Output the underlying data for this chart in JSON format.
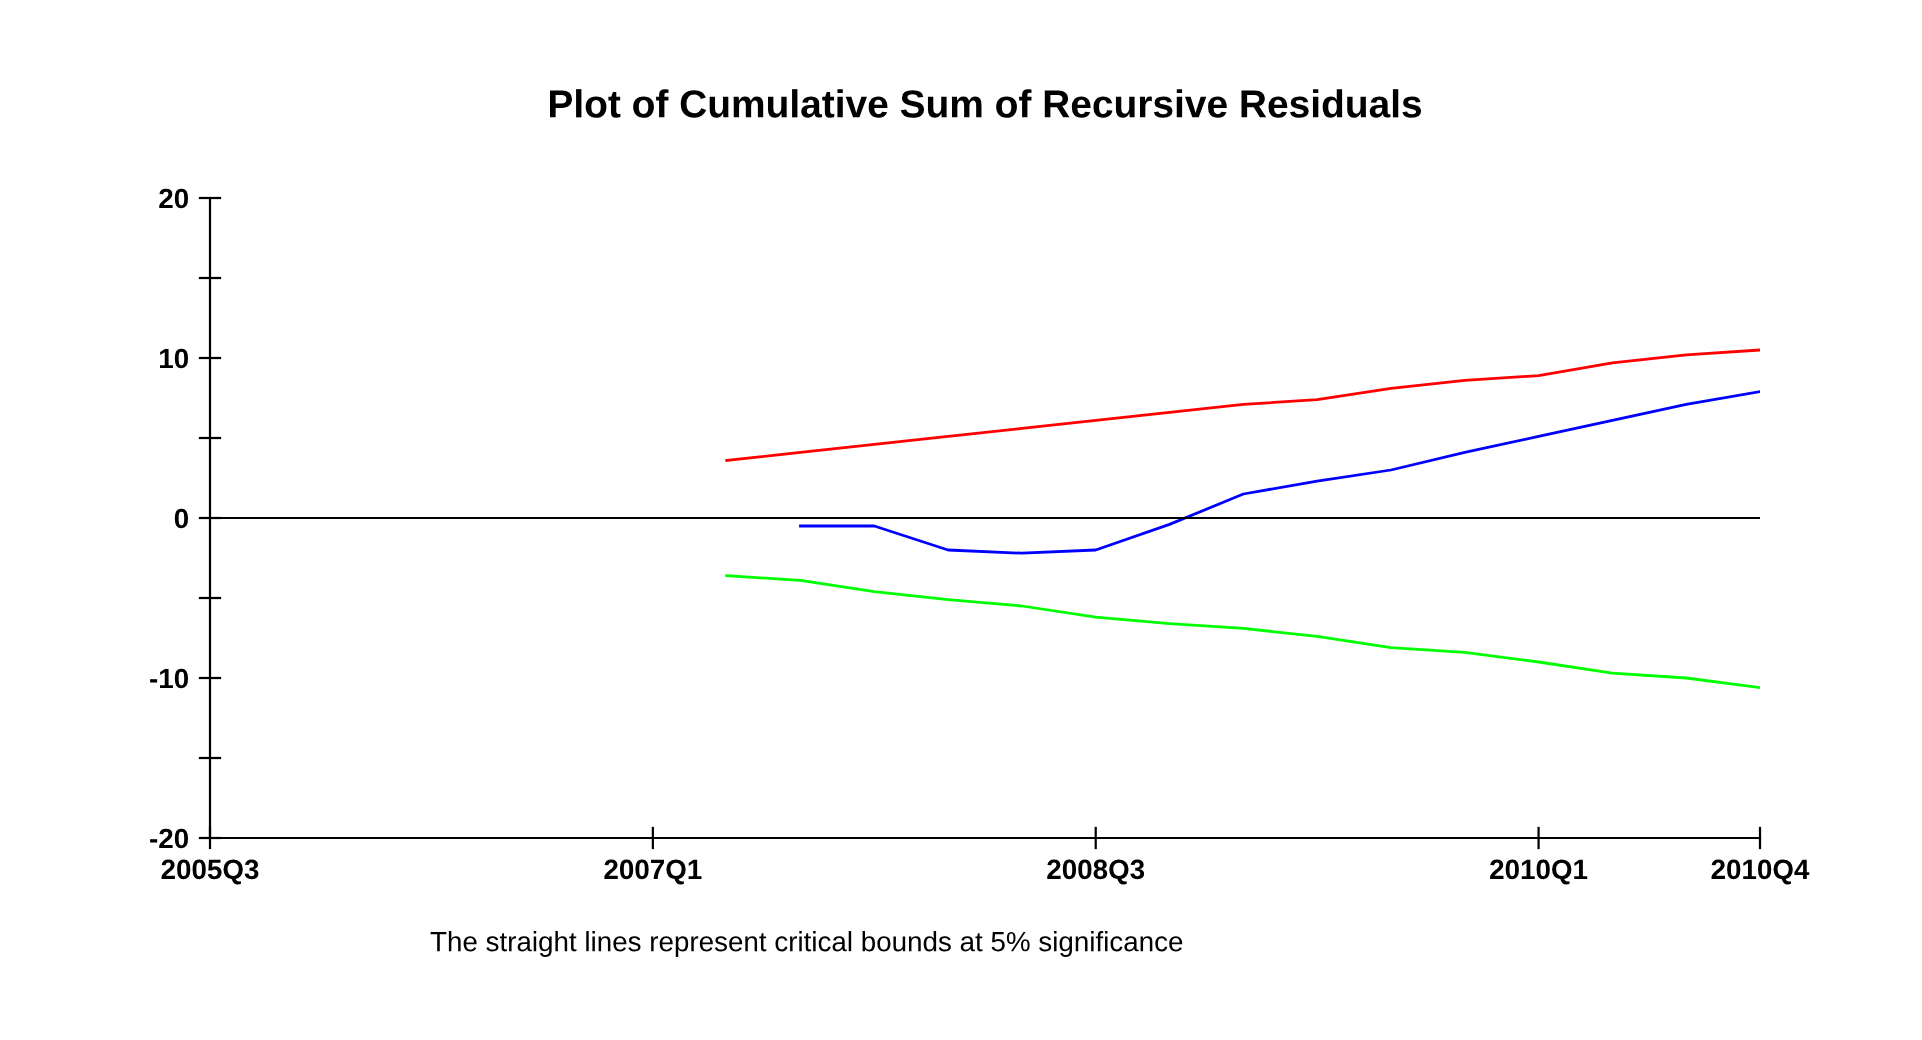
{
  "chart_data": {
    "type": "line",
    "title": "Plot of Cumulative Sum of Recursive Residuals",
    "categories": [
      "2005Q3",
      null,
      null,
      null,
      null,
      null,
      "2007Q1",
      null,
      null,
      null,
      null,
      null,
      "2008Q3",
      null,
      null,
      null,
      null,
      null,
      "2010Q1",
      null,
      null,
      "2010Q4"
    ],
    "series": [
      {
        "color": "#ff0000",
        "values": [
          null,
          null,
          null,
          null,
          null,
          null,
          null,
          3.6,
          4.1,
          4.6,
          5.1,
          5.6,
          6.1,
          6.6,
          7.1,
          7.4,
          8.1,
          8.6,
          8.9,
          9.7,
          10.2,
          10.5
        ]
      },
      {
        "color": "#0000ff",
        "values": [
          null,
          null,
          null,
          null,
          null,
          null,
          null,
          null,
          -0.5,
          -0.5,
          -2.0,
          -2.2,
          -2.0,
          -0.4,
          1.5,
          2.3,
          3.0,
          4.1,
          5.1,
          6.1,
          7.1,
          7.9
        ]
      },
      {
        "color": "#00ff00",
        "values": [
          null,
          null,
          null,
          null,
          null,
          null,
          null,
          -3.6,
          -3.9,
          -4.6,
          -5.1,
          -5.5,
          -6.2,
          -6.6,
          -6.9,
          -7.4,
          -8.1,
          -8.4,
          -9.0,
          -9.7,
          -10.0,
          -10.6
        ]
      }
    ],
    "ylim": [
      -20,
      20
    ],
    "yticks": [
      -20,
      {
        "value": -15,
        "label": null
      },
      -10,
      {
        "value": -5,
        "label": null
      },
      0,
      {
        "value": 5,
        "label": null
      },
      10,
      {
        "value": 15,
        "label": null
      },
      20
    ],
    "ref_lines": [
      {
        "axis": "y",
        "value": 0,
        "color": "#000000"
      }
    ],
    "annotations": [
      "The straight lines represent critical bounds at 5% significance"
    ],
    "grid": false,
    "legend": false
  }
}
